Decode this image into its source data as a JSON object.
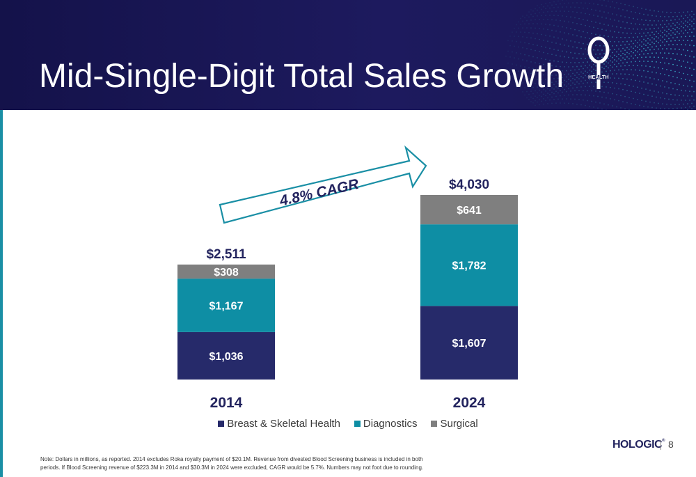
{
  "slide": {
    "title": "Mid-Single-Digit Total Sales Growth",
    "page_number": "8",
    "note": "Note: Dollars in millions, as reported. 2014 excludes Roka royalty payment of $20.1M. Revenue from divested Blood Screening business is included in both periods. If Blood Screening revenue of $223.3M in 2014 and $30.3M in 2024 were excluded, CAGR would be 5.7%. Numbers may not foot due to rounding.",
    "logo_health": "HEALTH",
    "logo_hologic": "HOLOGIC",
    "logo_hologic_mark": "®"
  },
  "colors": {
    "breast": "#262a6a",
    "diagnostics": "#0e8ea4",
    "surgical": "#7f7f7f",
    "header": "#1a1858",
    "arrow": "#1a8fa5"
  },
  "chart_data": {
    "type": "bar",
    "stacked": true,
    "categories": [
      "2014",
      "2024"
    ],
    "series": [
      {
        "name": "Breast & Skeletal Health",
        "values": [
          1036,
          1607
        ],
        "labels": [
          "$1,036",
          "$1,607"
        ]
      },
      {
        "name": "Diagnostics",
        "values": [
          1167,
          1782
        ],
        "labels": [
          "$1,167",
          "$1,782"
        ]
      },
      {
        "name": "Surgical",
        "values": [
          308,
          641
        ],
        "labels": [
          "$308",
          "$641"
        ]
      }
    ],
    "totals": [
      2511,
      4030
    ],
    "total_labels": [
      "$2,511",
      "$4,030"
    ],
    "annotation": "4.8% CAGR",
    "legend_position": "bottom",
    "grid": false
  }
}
